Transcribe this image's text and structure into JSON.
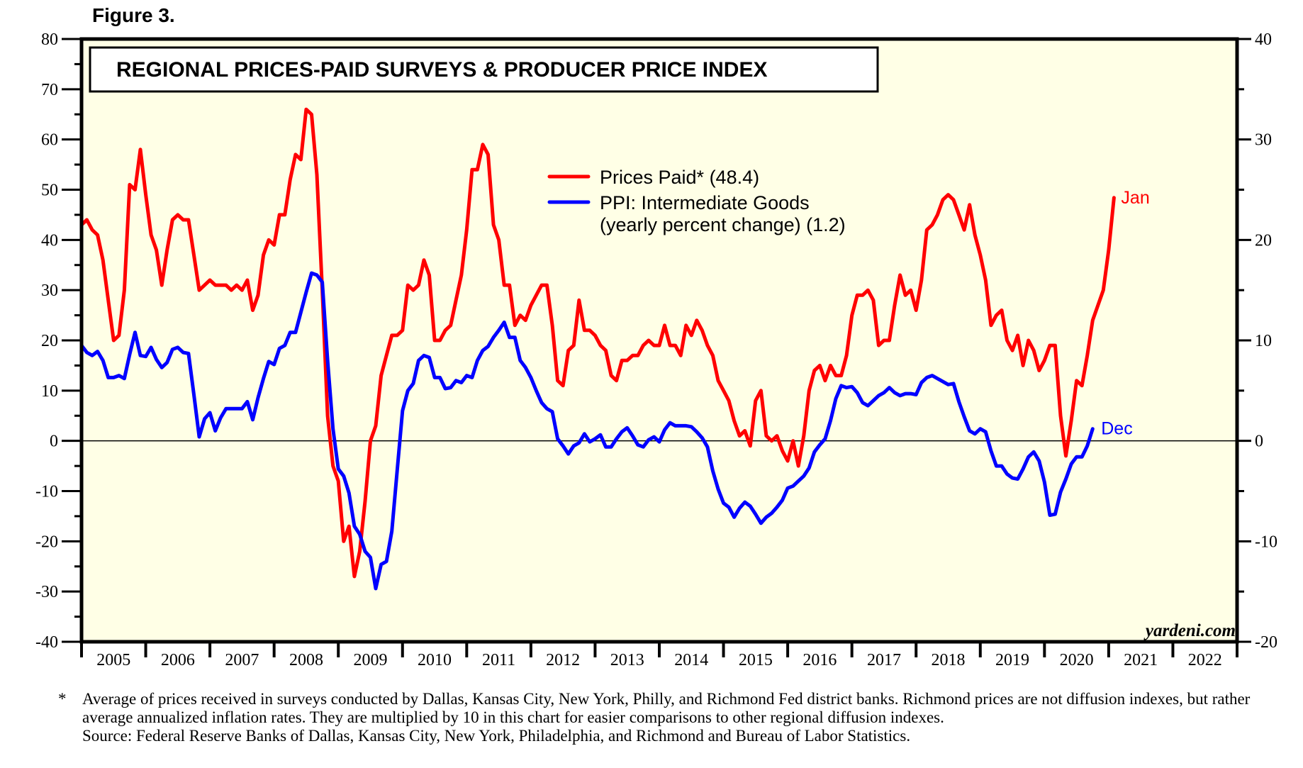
{
  "figure_label": "Figure 3.",
  "chart_data": {
    "type": "line",
    "title": "REGIONAL PRICES-PAID SURVEYS & PRODUCER PRICE INDEX",
    "credit": "yardeni.com",
    "x_axis": {
      "tick_labels": [
        "2005",
        "2006",
        "2007",
        "2008",
        "2009",
        "2010",
        "2011",
        "2012",
        "2013",
        "2014",
        "2015",
        "2016",
        "2017",
        "2018",
        "2019",
        "2020",
        "2021",
        "2022"
      ],
      "range": [
        2005,
        2023
      ]
    },
    "y_left": {
      "range": [
        -40,
        80
      ],
      "tick_labels": [
        "80",
        "70",
        "60",
        "50",
        "40",
        "30",
        "20",
        "10",
        "0",
        "-10",
        "-20",
        "-30",
        "-40"
      ],
      "minor_step": 5
    },
    "y_right": {
      "range": [
        -20,
        40
      ],
      "tick_labels": [
        "40",
        "30",
        "20",
        "10",
        "0",
        "-10",
        "-20"
      ],
      "minor_step": 5
    },
    "zero_line": true,
    "legend": {
      "placement": "top-center",
      "entries": [
        {
          "label": "Prices Paid* (48.4)",
          "color": "#ff0000"
        },
        {
          "label_line1": "PPI: Intermediate Goods",
          "label_line2": "(yearly percent change) (1.2)",
          "color": "#0000ff"
        }
      ]
    },
    "series": [
      {
        "name": "Prices Paid*",
        "axis": "left",
        "color": "#ff0000",
        "start": "2005-01",
        "frequency": "monthly",
        "end_label": "Jan",
        "latest": 48.4,
        "values": [
          43,
          44,
          42,
          41,
          36,
          28,
          20,
          21,
          30,
          51,
          50,
          58,
          49,
          41,
          38,
          31,
          38,
          44,
          45,
          44,
          44,
          37,
          30,
          31,
          32,
          31,
          31,
          31,
          30,
          31,
          30,
          32,
          26,
          29,
          37,
          40,
          39,
          45,
          45,
          52,
          57,
          56,
          66,
          65,
          53,
          30,
          5,
          -5,
          -8,
          -20,
          -17,
          -27,
          -22,
          -12,
          0,
          3,
          13,
          17,
          21,
          21,
          22,
          31,
          30,
          31,
          36,
          33,
          20,
          20,
          22,
          23,
          28,
          33,
          42,
          54,
          54,
          59,
          57,
          43,
          40,
          31,
          31,
          23,
          25,
          24,
          27,
          29,
          31,
          31,
          23,
          12,
          11,
          18,
          19,
          28,
          22,
          22,
          21,
          19,
          18,
          13,
          12,
          16,
          16,
          17,
          17,
          19,
          20,
          19,
          19,
          23,
          19,
          19,
          17,
          23,
          21,
          24,
          22,
          19,
          17,
          12,
          10,
          8,
          4,
          1,
          2,
          -1,
          8,
          10,
          1,
          0,
          1,
          -2,
          -4,
          0,
          -5,
          1,
          10,
          14,
          15,
          12,
          15,
          13,
          13,
          17,
          25,
          29,
          29,
          30,
          28,
          19,
          20,
          20,
          27,
          33,
          29,
          30,
          26,
          32,
          42,
          43,
          45,
          48,
          49,
          48,
          45,
          42,
          47,
          41,
          37,
          32,
          23,
          25,
          26,
          20,
          18,
          21,
          15,
          20,
          18,
          14,
          16,
          19,
          19,
          5,
          -3,
          4,
          12,
          11,
          17,
          24,
          27,
          30,
          38,
          48.4
        ]
      },
      {
        "name": "PPI: Intermediate Goods (yearly percent change)",
        "axis": "right",
        "color": "#0000ff",
        "start": "2005-01",
        "frequency": "monthly",
        "end_label": "Dec",
        "latest": 1.2,
        "values": [
          9.5,
          8.8,
          8.5,
          8.9,
          8.0,
          6.3,
          6.3,
          6.5,
          6.2,
          8.6,
          10.8,
          8.5,
          8.4,
          9.3,
          8.1,
          7.3,
          7.8,
          9.1,
          9.3,
          8.8,
          8.7,
          4.6,
          0.4,
          2.2,
          2.8,
          1.0,
          2.3,
          3.2,
          3.2,
          3.2,
          3.2,
          3.9,
          2.1,
          4.3,
          6.2,
          7.9,
          7.6,
          9.2,
          9.5,
          10.8,
          10.8,
          12.8,
          14.8,
          16.7,
          16.5,
          15.8,
          8.0,
          1.2,
          -2.8,
          -3.5,
          -5.2,
          -8.5,
          -9.3,
          -11.0,
          -11.6,
          -14.7,
          -12.3,
          -12.0,
          -9.0,
          -3.0,
          3.0,
          5.0,
          5.7,
          8.0,
          8.5,
          8.3,
          6.3,
          6.3,
          5.2,
          5.3,
          6.0,
          5.8,
          6.5,
          6.3,
          8.0,
          9.0,
          9.4,
          10.3,
          11.0,
          11.8,
          10.3,
          10.3,
          8.0,
          7.3,
          6.3,
          5.0,
          3.8,
          3.2,
          2.9,
          0.2,
          -0.5,
          -1.3,
          -0.5,
          -0.2,
          0.7,
          -0.1,
          0.2,
          0.6,
          -0.6,
          -0.6,
          0.2,
          0.9,
          1.3,
          0.5,
          -0.4,
          -0.6,
          0.1,
          0.4,
          -0.1,
          1.1,
          1.8,
          1.5,
          1.5,
          1.5,
          1.4,
          0.9,
          0.3,
          -0.6,
          -3.0,
          -4.8,
          -6.2,
          -6.6,
          -7.6,
          -6.7,
          -6.1,
          -6.5,
          -7.3,
          -8.2,
          -7.6,
          -7.2,
          -6.6,
          -5.9,
          -4.7,
          -4.5,
          -4.0,
          -3.5,
          -2.7,
          -1.1,
          -0.4,
          0.2,
          2.0,
          4.2,
          5.5,
          5.3,
          5.4,
          4.8,
          3.8,
          3.5,
          4.0,
          4.5,
          4.8,
          5.3,
          4.8,
          4.5,
          4.7,
          4.7,
          4.6,
          5.8,
          6.3,
          6.5,
          6.2,
          5.9,
          5.6,
          5.7,
          3.9,
          2.4,
          1.0,
          0.7,
          1.2,
          0.9,
          -1.0,
          -2.5,
          -2.5,
          -3.3,
          -3.7,
          -3.8,
          -2.8,
          -1.6,
          -1.1,
          -2.0,
          -4.1,
          -7.4,
          -7.3,
          -5.1,
          -3.8,
          -2.3,
          -1.6,
          -1.6,
          -0.5,
          1.2
        ]
      }
    ]
  },
  "footnote": {
    "marker": "*",
    "text": "Average of prices received in surveys conducted by Dallas, Kansas City, New York, Philly, and Richmond Fed district banks. Richmond prices are not diffusion indexes, but rather average annualized inflation rates. They are multiplied by 10 in this chart for easier comparisons to other regional diffusion indexes.",
    "source": "Source: Federal Reserve Banks of Dallas, Kansas City, New York, Philadelphia, and Richmond and Bureau of Labor Statistics."
  }
}
